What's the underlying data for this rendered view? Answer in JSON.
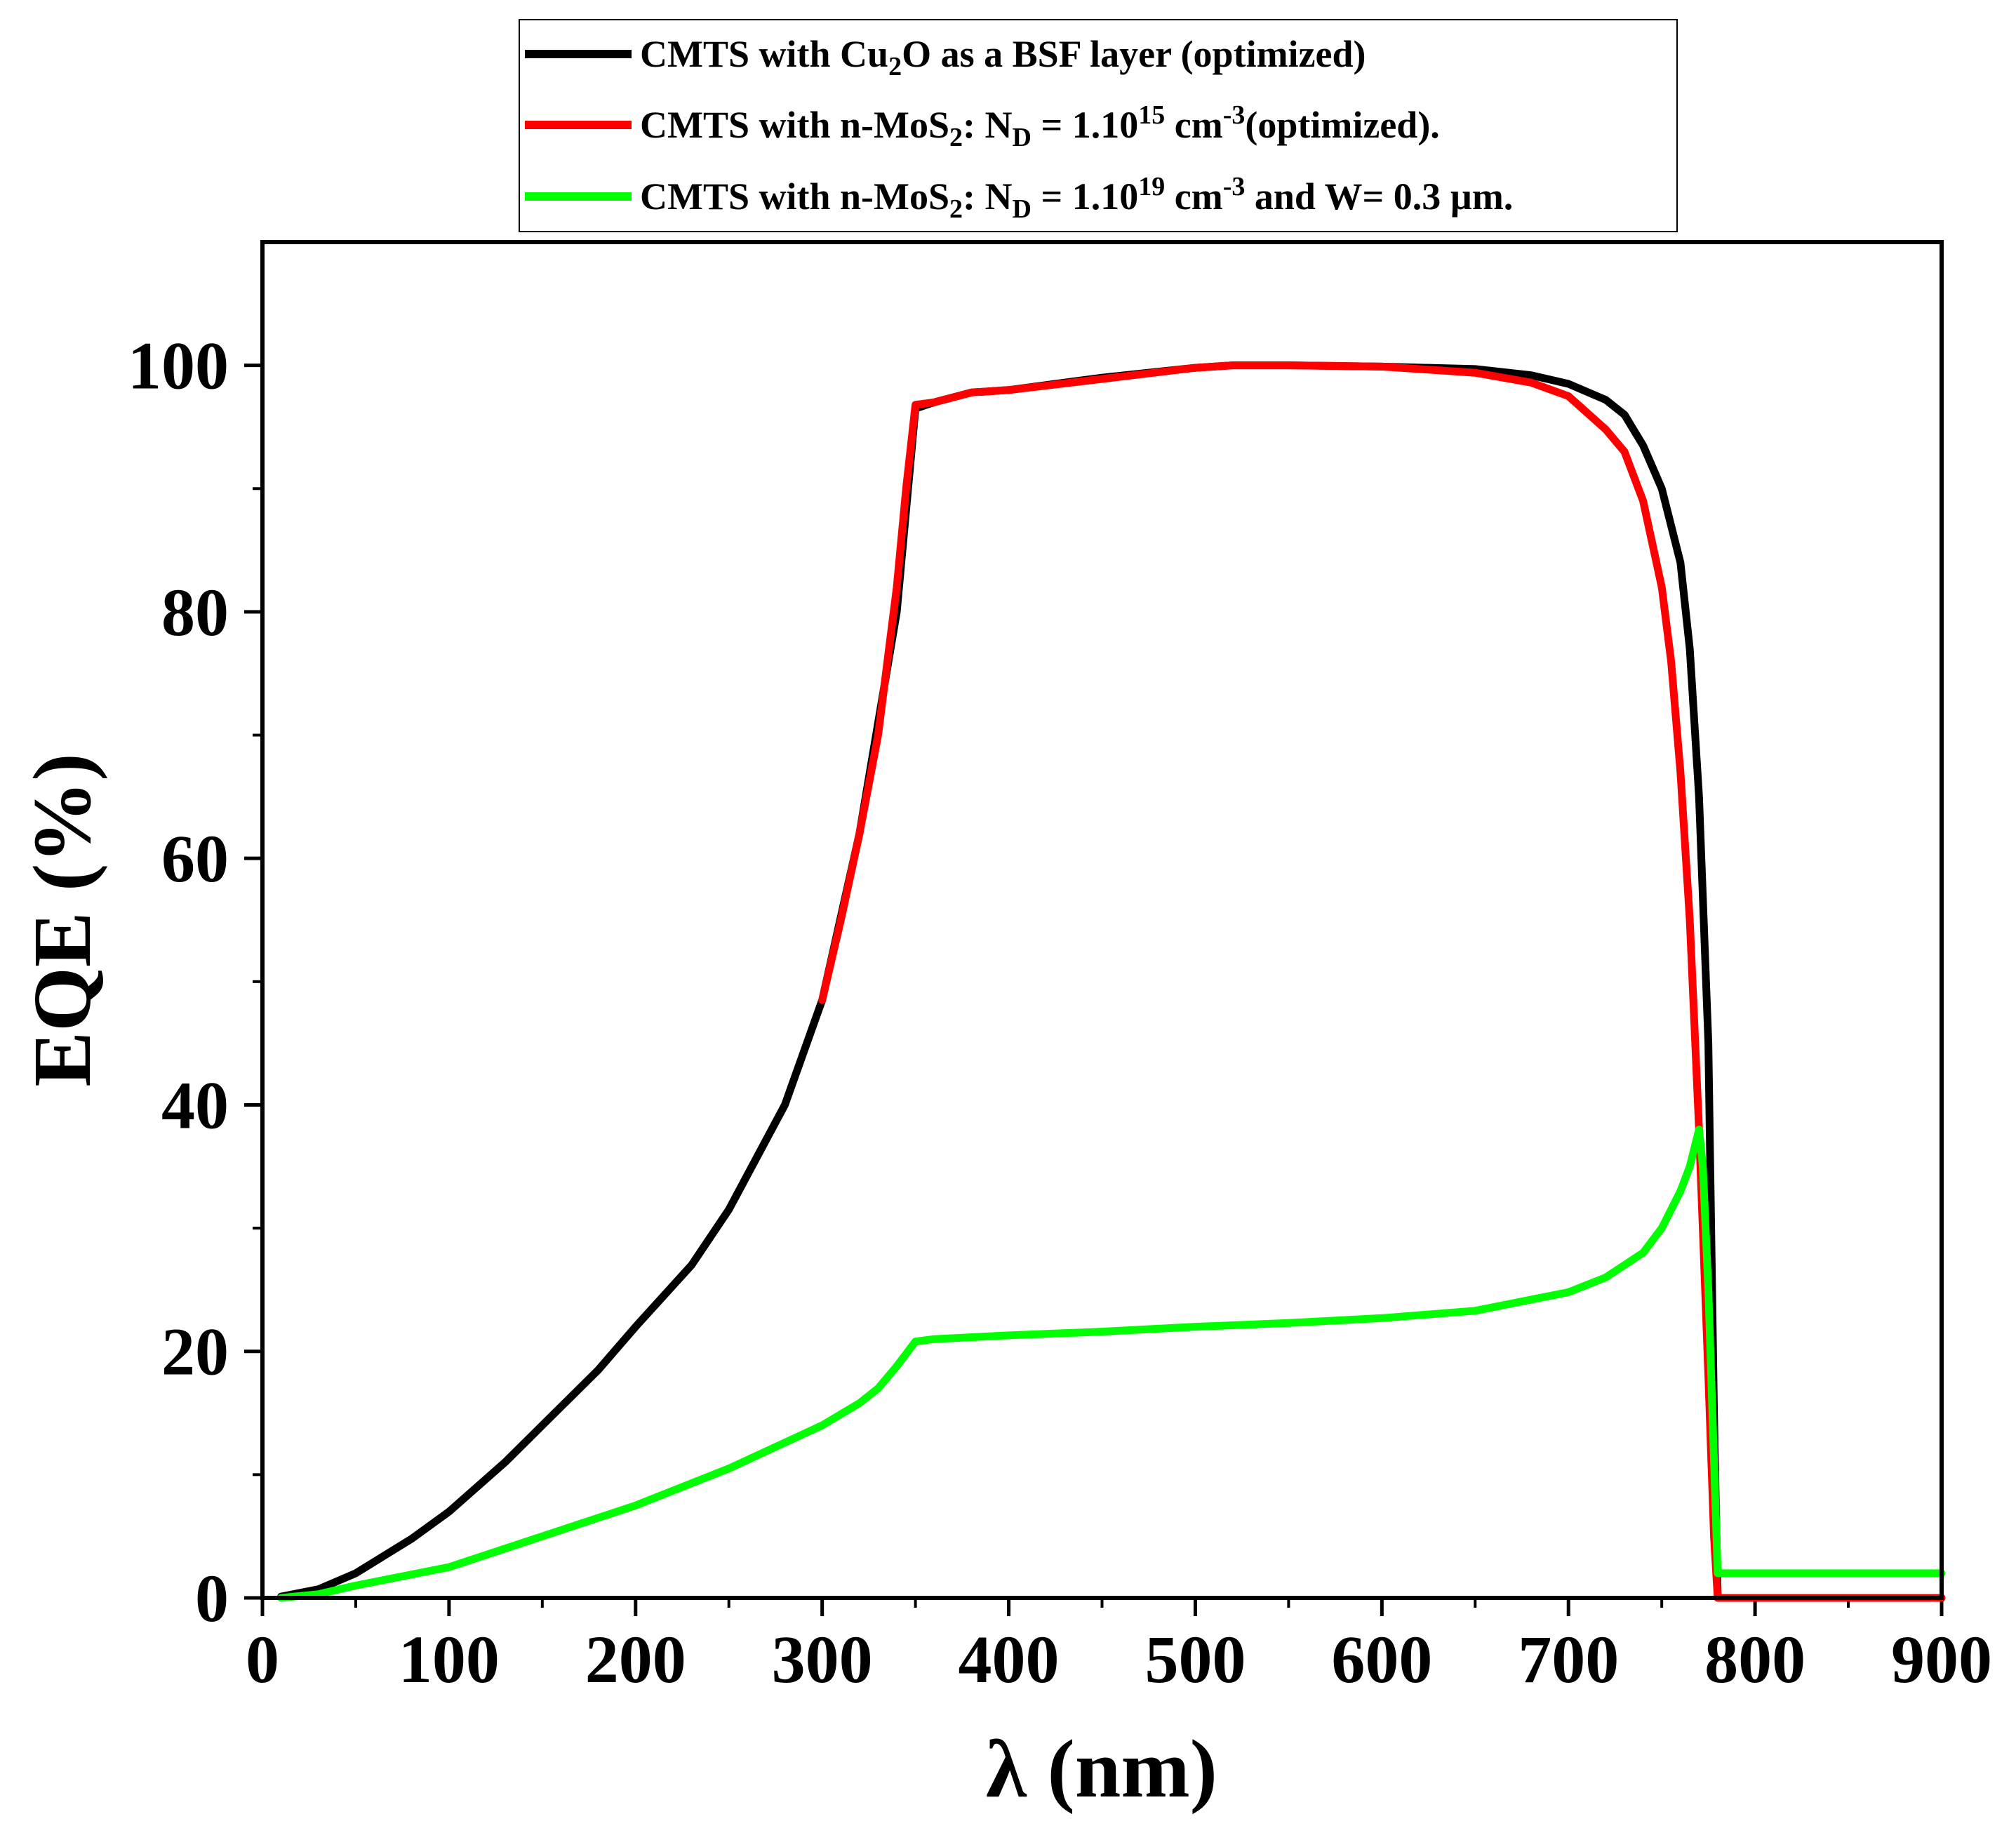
{
  "chart_data": {
    "type": "line",
    "title": "",
    "xlabel": "λ (nm)",
    "ylabel": "EQE (%)",
    "xlim": [
      0,
      900
    ],
    "ylim": [
      0,
      110
    ],
    "x_ticks": [
      "0",
      "100",
      "200",
      "300",
      "400",
      "500",
      "600",
      "700",
      "800",
      "900"
    ],
    "y_ticks": [
      "0",
      "20",
      "40",
      "60",
      "80",
      "100"
    ],
    "grid": false,
    "legend_position": "top-center, above plot",
    "legend": [
      {
        "series": 0,
        "parts": [
          {
            "t": "CMTS with Cu"
          },
          {
            "t": "2",
            "sub": true
          },
          {
            "t": "O as a BSF layer (optimized)"
          }
        ]
      },
      {
        "series": 1,
        "parts": [
          {
            "t": "CMTS with n-MoS"
          },
          {
            "t": "2",
            "sub": true
          },
          {
            "t": ": N"
          },
          {
            "t": "D",
            "sub": true
          },
          {
            "t": " = 1.10"
          },
          {
            "t": "15",
            "sup": true
          },
          {
            "t": " cm"
          },
          {
            "t": "-3",
            "sup": true
          },
          {
            "t": "(optimized)."
          }
        ]
      },
      {
        "series": 2,
        "parts": [
          {
            "t": "CMTS with n-MoS"
          },
          {
            "t": "2",
            "sub": true
          },
          {
            "t": ": N"
          },
          {
            "t": "D",
            "sub": true
          },
          {
            "t": " = 1.10"
          },
          {
            "t": "19",
            "sup": true
          },
          {
            "t": " cm"
          },
          {
            "t": "-3",
            "sup": true
          },
          {
            "t": " and W= 0.3 µm."
          }
        ]
      }
    ],
    "series": [
      {
        "name": "CMTS with Cu2O as a BSF layer (optimized)",
        "color": "#000000",
        "x": [
          10,
          30,
          50,
          80,
          100,
          130,
          150,
          180,
          200,
          230,
          250,
          280,
          300,
          320,
          340,
          350,
          360,
          380,
          400,
          450,
          500,
          520,
          550,
          600,
          650,
          680,
          700,
          720,
          730,
          740,
          750,
          760,
          765,
          770,
          775,
          778,
          780,
          800,
          900
        ],
        "y": [
          0.1,
          0.7,
          2.0,
          4.8,
          7.0,
          11.0,
          14.0,
          18.5,
          22.0,
          27.0,
          31.5,
          40.0,
          48.5,
          62.0,
          80.0,
          96.5,
          97.0,
          97.8,
          98.0,
          99.0,
          99.8,
          100.0,
          100.0,
          99.9,
          99.7,
          99.2,
          98.5,
          97.2,
          96.0,
          93.5,
          90.0,
          84.0,
          77.0,
          65.0,
          45.0,
          15.0,
          0.0,
          0.0,
          0.0
        ]
      },
      {
        "name": "CMTS with n-MoS2: ND = 1.10^15 cm^-3 (optimized)",
        "color": "#ff0000",
        "x": [
          300,
          310,
          320,
          330,
          340,
          345,
          350,
          360,
          380,
          400,
          450,
          500,
          520,
          550,
          600,
          650,
          680,
          700,
          720,
          730,
          740,
          750,
          755,
          760,
          765,
          770,
          775,
          778,
          780,
          800,
          900
        ],
        "y": [
          48.5,
          55.0,
          62.0,
          70.0,
          82.0,
          90.0,
          96.8,
          97.0,
          97.8,
          98.0,
          98.9,
          99.8,
          100.0,
          100.0,
          99.9,
          99.4,
          98.6,
          97.5,
          94.8,
          93.0,
          89.0,
          82.0,
          76.0,
          67.0,
          55.0,
          38.0,
          18.0,
          5.0,
          0.0,
          0.0,
          0.0
        ]
      },
      {
        "name": "CMTS with n-MoS2: ND = 1.10^19 cm^-3 and W = 0.3 µm",
        "color": "#00ff00",
        "x": [
          10,
          30,
          50,
          100,
          150,
          200,
          250,
          300,
          320,
          330,
          340,
          350,
          360,
          400,
          450,
          500,
          550,
          600,
          650,
          700,
          720,
          740,
          750,
          760,
          765,
          770,
          772,
          775,
          780,
          800,
          900
        ],
        "y": [
          0.0,
          0.3,
          1.0,
          2.5,
          5.0,
          7.5,
          10.5,
          14.0,
          15.8,
          17.0,
          18.8,
          20.8,
          21.0,
          21.3,
          21.6,
          22.0,
          22.3,
          22.7,
          23.3,
          24.8,
          26.0,
          28.0,
          30.0,
          33.0,
          35.0,
          38.0,
          35.0,
          25.0,
          2.0,
          2.0,
          2.0
        ]
      }
    ]
  }
}
